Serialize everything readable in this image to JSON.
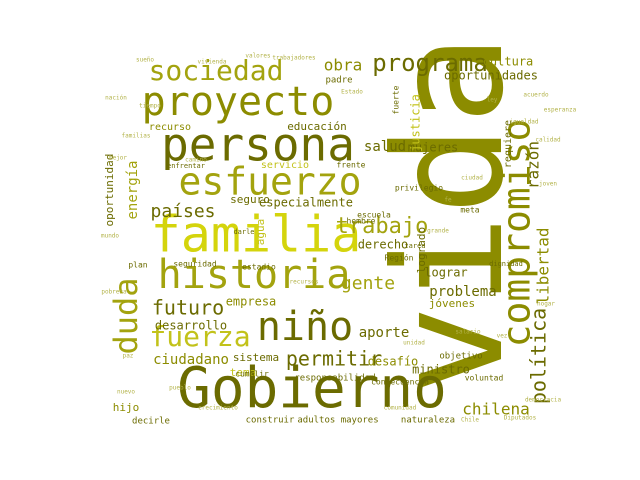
{
  "palette": {
    "olive_dark": "#6b6b00",
    "olive": "#8c8c00",
    "olive_light": "#a3a30e",
    "yellow_green": "#c2c21a",
    "lime": "#d4d40c",
    "khaki": "#b3b34a",
    "background": "#ffffff"
  },
  "words": [
    {
      "text": "vida",
      "rotated": true
    },
    {
      "text": "Gobierno",
      "rotated": false
    },
    {
      "text": "familia",
      "rotated": false
    },
    {
      "text": "persona",
      "rotated": false
    },
    {
      "text": "compromiso",
      "rotated": true
    },
    {
      "text": "historia",
      "rotated": false
    },
    {
      "text": "proyecto",
      "rotated": false
    },
    {
      "text": "esfuerzo",
      "rotated": false
    },
    {
      "text": "niño",
      "rotated": false
    },
    {
      "text": "sociedad",
      "rotated": false
    },
    {
      "text": "fuerza",
      "rotated": false
    },
    {
      "text": "duda",
      "rotated": true
    },
    {
      "text": "programa",
      "rotated": false
    },
    {
      "text": "trabajo",
      "rotated": false
    },
    {
      "text": "futuro",
      "rotated": false
    },
    {
      "text": "permitir",
      "rotated": false
    },
    {
      "text": "política",
      "rotated": true
    },
    {
      "text": "países",
      "rotated": false
    },
    {
      "text": "gente",
      "rotated": false
    },
    {
      "text": "salud",
      "rotated": false
    },
    {
      "text": "obra",
      "rotated": false
    },
    {
      "text": "energía",
      "rotated": true
    },
    {
      "text": "chilena",
      "rotated": false
    },
    {
      "text": "libertad",
      "rotated": true
    },
    {
      "text": "razón",
      "rotated": true
    },
    {
      "text": "problema",
      "rotated": false
    },
    {
      "text": "desarrollo",
      "rotated": false
    },
    {
      "text": "aporte",
      "rotated": false
    },
    {
      "text": "empresa",
      "rotated": false
    },
    {
      "text": "ciudadano",
      "rotated": false
    },
    {
      "text": "oportunidades",
      "rotated": false
    },
    {
      "text": "cultura",
      "rotated": false
    },
    {
      "text": "especialmente",
      "rotated": false
    },
    {
      "text": "derecho",
      "rotated": false
    },
    {
      "text": "mujeres",
      "rotated": false
    },
    {
      "text": "ministro",
      "rotated": false
    },
    {
      "text": "lograr",
      "rotated": false
    },
    {
      "text": "desafío",
      "rotated": false
    },
    {
      "text": "justicia",
      "rotated": true
    },
    {
      "text": "educación",
      "rotated": false
    },
    {
      "text": "oportunidad",
      "rotated": true
    },
    {
      "text": "sistema",
      "rotated": false
    },
    {
      "text": "jóvenes",
      "rotated": false
    },
    {
      "text": "seguro",
      "rotated": false
    },
    {
      "text": "agua",
      "rotated": true
    },
    {
      "text": "logrado",
      "rotated": true
    },
    {
      "text": "hijo",
      "rotated": false
    },
    {
      "text": "tema",
      "rotated": false
    },
    {
      "text": "servicio",
      "rotated": false
    },
    {
      "text": "recurso",
      "rotated": false
    },
    {
      "text": "construir",
      "rotated": false
    },
    {
      "text": "naturaleza",
      "rotated": false
    },
    {
      "text": "adultos mayores",
      "rotated": false
    },
    {
      "text": "responsabilidad",
      "rotated": false
    },
    {
      "text": "objetivo",
      "rotated": false
    },
    {
      "text": "consecuencia",
      "rotated": false
    },
    {
      "text": "requiere",
      "rotated": true
    },
    {
      "text": "padre",
      "rotated": false
    },
    {
      "text": "escuela",
      "rotated": false
    },
    {
      "text": "hombre",
      "rotated": false
    },
    {
      "text": "frente",
      "rotated": false
    },
    {
      "text": "estadio",
      "rotated": false
    },
    {
      "text": "Región",
      "rotated": false
    },
    {
      "text": "decirle",
      "rotated": false
    },
    {
      "text": "cumplir",
      "rotated": false
    },
    {
      "text": "voluntad",
      "rotated": false
    },
    {
      "text": "plan",
      "rotated": false
    },
    {
      "text": "seguridad",
      "rotated": false
    },
    {
      "text": "meta",
      "rotated": false
    },
    {
      "text": "tarea",
      "rotated": false
    },
    {
      "text": "darle",
      "rotated": false
    },
    {
      "text": "privilegio",
      "rotated": false
    },
    {
      "text": "dignidad",
      "rotated": false
    },
    {
      "text": "fuerte",
      "rotated": true
    },
    {
      "text": "enfrentar",
      "rotated": false
    },
    {
      "text": "Diputados",
      "rotated": false
    },
    {
      "text": "calidad",
      "rotated": false
    },
    {
      "text": "sueño",
      "rotated": false
    },
    {
      "text": "vivienda",
      "rotated": false
    },
    {
      "text": "joven",
      "rotated": false
    },
    {
      "text": "nación",
      "rotated": false
    },
    {
      "text": "mundo",
      "rotated": false
    },
    {
      "text": "tiempo",
      "rotated": false
    },
    {
      "text": "ley",
      "rotated": false
    },
    {
      "text": "vez",
      "rotated": false
    },
    {
      "text": "paz",
      "rotated": false
    },
    {
      "text": "Estado",
      "rotated": false
    },
    {
      "text": "Chile",
      "rotated": false
    },
    {
      "text": "trabajadores",
      "rotated": false
    },
    {
      "text": "esperanza",
      "rotated": false
    },
    {
      "text": "crecimiento",
      "rotated": false
    },
    {
      "text": "nuevo",
      "rotated": false
    },
    {
      "text": "acuerdo",
      "rotated": false
    },
    {
      "text": "grande",
      "rotated": false
    },
    {
      "text": "mejor",
      "rotated": false
    },
    {
      "text": "camino",
      "rotated": false
    },
    {
      "text": "recursos",
      "rotated": false
    },
    {
      "text": "salario",
      "rotated": false
    },
    {
      "text": "unidad",
      "rotated": false
    },
    {
      "text": "ciudad",
      "rotated": false
    },
    {
      "text": "fe",
      "rotated": false
    },
    {
      "text": "hogar",
      "rotated": false
    },
    {
      "text": "valores",
      "rotated": false
    },
    {
      "text": "pueblo",
      "rotated": false
    },
    {
      "text": "familias",
      "rotated": false
    },
    {
      "text": "democracia",
      "rotated": false
    },
    {
      "text": "pobreza",
      "rotated": false
    },
    {
      "text": "igualdad",
      "rotated": false
    },
    {
      "text": "comunidad",
      "rotated": false
    }
  ]
}
